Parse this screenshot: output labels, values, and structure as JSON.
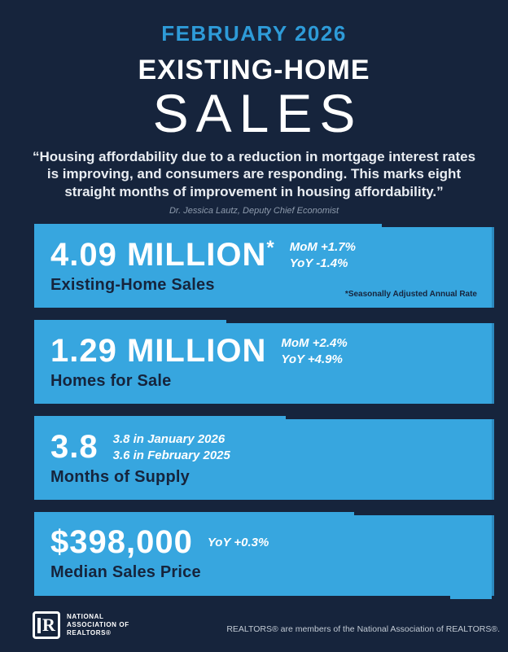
{
  "theme": {
    "background": "#16243C",
    "card_blue": "#37A6DF",
    "card_edge": "#2C8AC0",
    "accent_blue": "#2E9BD8",
    "navy_text": "#16243C",
    "muted": "#8E9BAD",
    "footer_text": "#C2CAD4"
  },
  "header": {
    "eyebrow": "FEBRUARY 2026",
    "title_line1": "EXISTING-HOME",
    "title_line2": "SALES",
    "quote": "“Housing affordability due to a reduction in mortgage interest rates is improving, and consumers are responding. This marks eight straight months of improvement in housing affordability.”",
    "attribution": "Dr. Jessica Lautz, Deputy Chief Economist"
  },
  "cards": [
    {
      "value": "4.09 MILLION",
      "value_superscript": "*",
      "label": "Existing-Home Sales",
      "stats": [
        "MoM +1.7%",
        "YoY -1.4%"
      ],
      "footnote": "*Seasonally Adjusted Annual Rate"
    },
    {
      "value": "1.29 MILLION",
      "label": "Homes for Sale",
      "stats": [
        "MoM +2.4%",
        "YoY +4.9%"
      ]
    },
    {
      "value": "3.8",
      "label": "Months of Supply",
      "stats": [
        "3.8 in January 2026",
        "3.6 in February 2025"
      ]
    },
    {
      "value": "$398,000",
      "label": "Median Sales Price",
      "stats": [
        "YoY +0.3%"
      ]
    }
  ],
  "footer": {
    "logo_letter": "R",
    "logo_lines": [
      "NATIONAL",
      "ASSOCIATION OF",
      "REALTORS®"
    ],
    "disclaimer": "REALTORS® are members of the National Association of REALTORS®."
  }
}
